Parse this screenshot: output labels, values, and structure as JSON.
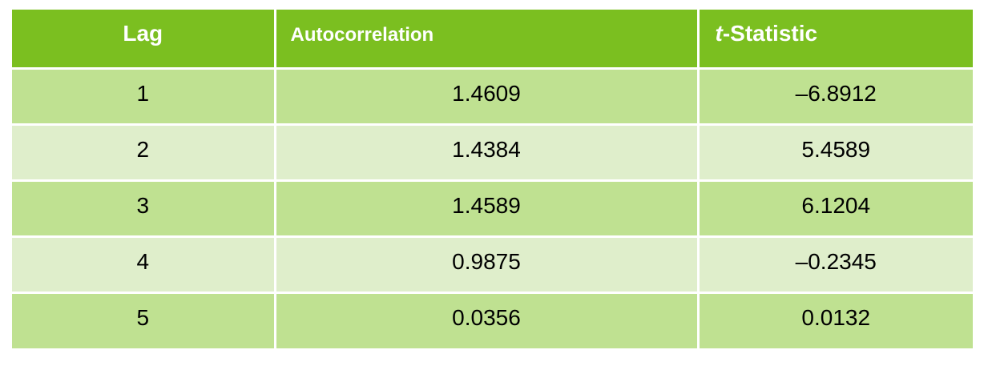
{
  "table": {
    "headers": {
      "lag": "Lag",
      "autocorrelation": "Autocorrelation",
      "t_statistic_italic": "t",
      "t_statistic_rest": "-Statistic"
    },
    "rows": [
      {
        "lag": "1",
        "autocorrelation": "1.4609",
        "t_statistic": "–6.8912"
      },
      {
        "lag": "2",
        "autocorrelation": "1.4384",
        "t_statistic": "5.4589"
      },
      {
        "lag": "3",
        "autocorrelation": "1.4589",
        "t_statistic": "6.1204"
      },
      {
        "lag": "4",
        "autocorrelation": "0.9875",
        "t_statistic": "–0.2345"
      },
      {
        "lag": "5",
        "autocorrelation": "0.0356",
        "t_statistic": "0.0132"
      }
    ],
    "colors": {
      "header": "#7bbf20",
      "row_dark": "#bfe191",
      "row_light": "#dfeecb",
      "grid": "#ffffff"
    }
  }
}
